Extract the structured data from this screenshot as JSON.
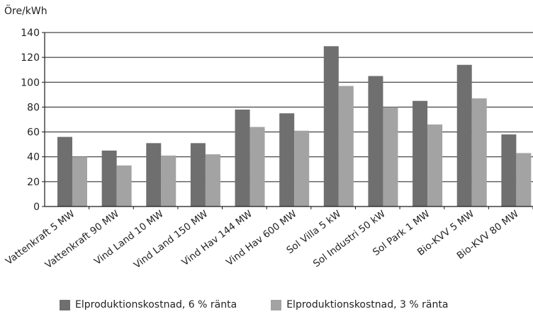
{
  "chart_data": {
    "type": "bar",
    "ylabel": "Öre/kWh",
    "ylim": [
      0,
      140
    ],
    "yticks": [
      0,
      20,
      40,
      60,
      80,
      100,
      120,
      140
    ],
    "grid": true,
    "legend_position": "bottom",
    "categories": [
      "Vattenkraft 5 MW",
      "Vattenkraft 90 MW",
      "Vind Land 10 MW",
      "Vind Land 150 MW",
      "Vind Hav 144 MW",
      "Vind Hav 600 MW",
      "Sol Villa 5 kW",
      "Sol Industri 50 kW",
      "Sol Park 1 MW",
      "Bio-KVV 5 MW",
      "Bio-KVV 80 MW"
    ],
    "series": [
      {
        "name": "Elproduktionskostnad, 6 % ränta",
        "color": "#6f6f6f",
        "values": [
          56,
          45,
          51,
          51,
          78,
          75,
          129,
          105,
          85,
          114,
          58
        ]
      },
      {
        "name": "Elproduktionskostnad, 3 % ränta",
        "color": "#a3a3a3",
        "values": [
          40,
          33,
          41,
          42,
          64,
          61,
          97,
          80,
          66,
          87,
          43
        ]
      }
    ]
  }
}
